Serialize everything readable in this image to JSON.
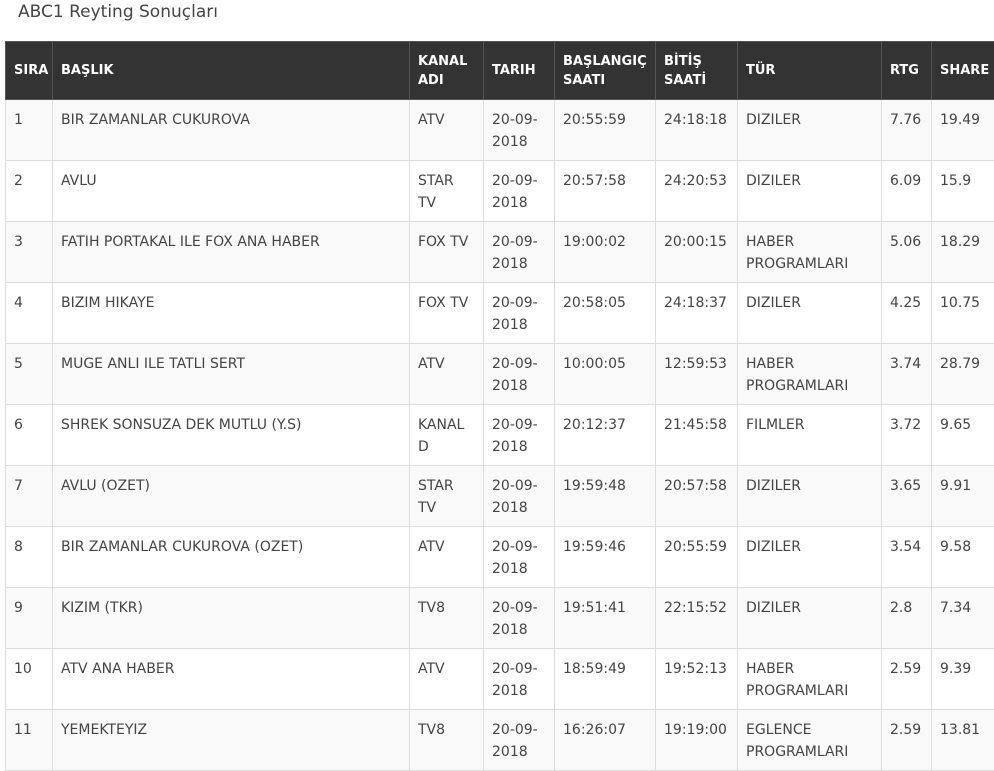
{
  "header": {
    "title": "ABC1 Reyting Sonuçları"
  },
  "table": {
    "columns": [
      "SIRA",
      "BAŞLIK",
      "KANAL ADI",
      "TARIH",
      "BAŞLANGIÇ SAATI",
      "BİTİŞ SAATİ",
      "TÜR",
      "RTG",
      "SHARE"
    ],
    "rows": [
      [
        "1",
        "BIR ZAMANLAR CUKUROVA",
        "ATV",
        "20-09-2018",
        "20:55:59",
        "24:18:18",
        "DIZILER",
        "7.76",
        "19.49"
      ],
      [
        "2",
        "AVLU",
        "STAR TV",
        "20-09-2018",
        "20:57:58",
        "24:20:53",
        "DIZILER",
        "6.09",
        "15.9"
      ],
      [
        "3",
        "FATIH PORTAKAL ILE FOX ANA HABER",
        "FOX TV",
        "20-09-2018",
        "19:00:02",
        "20:00:15",
        "HABER PROGRAMLARI",
        "5.06",
        "18.29"
      ],
      [
        "4",
        "BIZIM HIKAYE",
        "FOX TV",
        "20-09-2018",
        "20:58:05",
        "24:18:37",
        "DIZILER",
        "4.25",
        "10.75"
      ],
      [
        "5",
        "MUGE ANLI ILE TATLI SERT",
        "ATV",
        "20-09-2018",
        "10:00:05",
        "12:59:53",
        "HABER PROGRAMLARI",
        "3.74",
        "28.79"
      ],
      [
        "6",
        "SHREK SONSUZA DEK MUTLU (Y.S)",
        "KANAL D",
        "20-09-2018",
        "20:12:37",
        "21:45:58",
        "FILMLER",
        "3.72",
        "9.65"
      ],
      [
        "7",
        "AVLU (OZET)",
        "STAR TV",
        "20-09-2018",
        "19:59:48",
        "20:57:58",
        "DIZILER",
        "3.65",
        "9.91"
      ],
      [
        "8",
        "BIR ZAMANLAR CUKUROVA (OZET)",
        "ATV",
        "20-09-2018",
        "19:59:46",
        "20:55:59",
        "DIZILER",
        "3.54",
        "9.58"
      ],
      [
        "9",
        "KIZIM (TKR)",
        "TV8",
        "20-09-2018",
        "19:51:41",
        "22:15:52",
        "DIZILER",
        "2.8",
        "7.34"
      ],
      [
        "10",
        "ATV ANA HABER",
        "ATV",
        "20-09-2018",
        "18:59:49",
        "19:52:13",
        "HABER PROGRAMLARI",
        "2.59",
        "9.39"
      ],
      [
        "11",
        "YEMEKTEYIZ",
        "TV8",
        "20-09-2018",
        "16:26:07",
        "19:19:00",
        "EGLENCE PROGRAMLARI",
        "2.59",
        "13.81"
      ]
    ]
  }
}
